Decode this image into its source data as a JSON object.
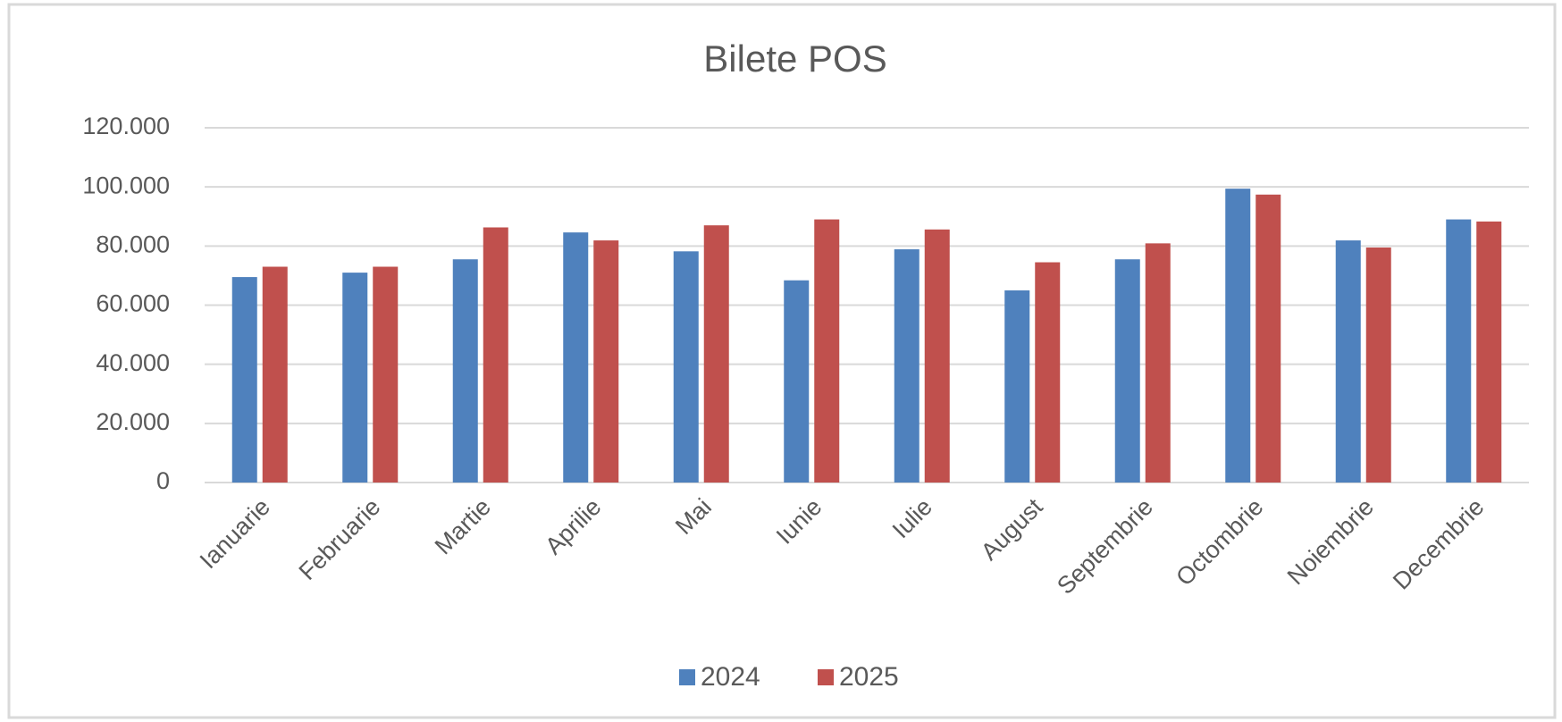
{
  "chart_data": {
    "type": "bar",
    "title": "Bilete POS",
    "categories": [
      "Ianuarie",
      "Februarie",
      "Martie",
      "Aprilie",
      "Mai",
      "Iunie",
      "Iulie",
      "August",
      "Septembrie",
      "Octombrie",
      "Noiembrie",
      "Decembrie"
    ],
    "series": [
      {
        "name": "2024",
        "color": "#4f81bd",
        "values": [
          69500,
          71000,
          75500,
          84600,
          78200,
          68400,
          78900,
          65000,
          75500,
          99400,
          81900,
          89000
        ]
      },
      {
        "name": "2025",
        "color": "#c0504d",
        "values": [
          73000,
          73000,
          86300,
          81900,
          87000,
          89000,
          85600,
          74500,
          80900,
          97400,
          79500,
          88300
        ]
      }
    ],
    "ylim": [
      0,
      120000
    ],
    "yticks": [
      0,
      {
        "value": 20000,
        "label": "20.000"
      },
      {
        "value": 40000,
        "label": "40.000"
      },
      {
        "value": 60000,
        "label": "60.000"
      },
      {
        "value": 80000,
        "label": "80.000"
      },
      {
        "value": 100000,
        "label": "100.000"
      },
      {
        "value": 120000,
        "label": "120.000"
      }
    ],
    "grid": true,
    "legend": "bottom"
  }
}
